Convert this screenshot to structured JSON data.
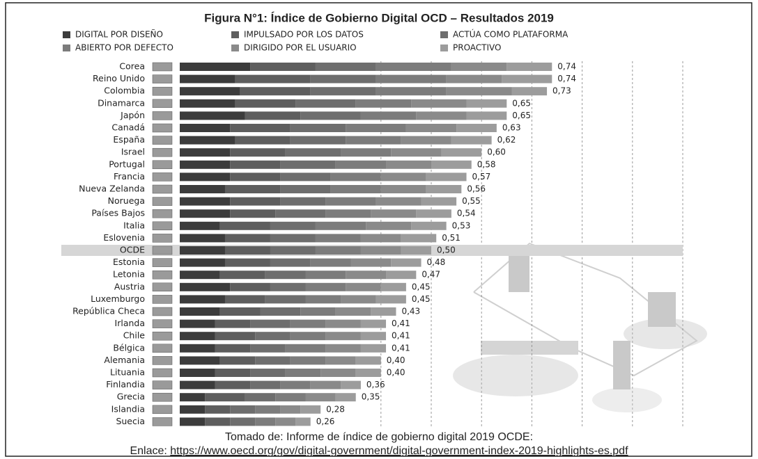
{
  "chart_data": {
    "type": "stacked-bar-horizontal",
    "title": "Figura N°1: Índice de Gobierno Digital OCD – Resultados 2019",
    "categories": [
      "Corea",
      "Reino Unido",
      "Colombia",
      "Dinamarca",
      "Japón",
      "Canadá",
      "España",
      "Israel",
      "Portugal",
      "Francia",
      "Nueva Zelanda",
      "Noruega",
      "Países Bajos",
      "Italia",
      "Eslovenia",
      "OCDE",
      "Estonia",
      "Letonia",
      "Austria",
      "Luxemburgo",
      "República Checa",
      "Irlanda",
      "Chile",
      "Bélgica",
      "Alemania",
      "Lituania",
      "Finlandia",
      "Grecia",
      "Islandia",
      "Suecia"
    ],
    "series": [
      {
        "name": "DIGITAL POR DISEÑO",
        "color": "#3c3c3c",
        "values": [
          0.14,
          0.11,
          0.12,
          0.11,
          0.13,
          0.1,
          0.11,
          0.1,
          0.1,
          0.1,
          0.09,
          0.1,
          0.1,
          0.08,
          0.09,
          0.09,
          0.09,
          0.08,
          0.1,
          0.09,
          0.08,
          0.07,
          0.07,
          0.07,
          0.08,
          0.07,
          0.07,
          0.05,
          0.05,
          0.05
        ]
      },
      {
        "name": "IMPULSADO POR LOS DATOS",
        "color": "#5e5e5e",
        "values": [
          0.13,
          0.15,
          0.14,
          0.12,
          0.11,
          0.12,
          0.11,
          0.11,
          0.1,
          0.1,
          0.11,
          0.1,
          0.09,
          0.1,
          0.09,
          0.09,
          0.09,
          0.09,
          0.08,
          0.08,
          0.08,
          0.07,
          0.08,
          0.07,
          0.07,
          0.07,
          0.07,
          0.08,
          0.05,
          0.05
        ]
      },
      {
        "name": "ACTÚA COMO PLATAFORMA",
        "color": "#6e6e6e",
        "values": [
          0.12,
          0.13,
          0.13,
          0.12,
          0.12,
          0.11,
          0.11,
          0.11,
          0.11,
          0.1,
          0.1,
          0.09,
          0.1,
          0.09,
          0.09,
          0.09,
          0.08,
          0.08,
          0.07,
          0.08,
          0.08,
          0.08,
          0.07,
          0.07,
          0.07,
          0.07,
          0.06,
          0.06,
          0.05,
          0.05
        ]
      },
      {
        "name": "ABIERTO POR DEFECTO",
        "color": "#7c7c7c",
        "values": [
          0.15,
          0.14,
          0.14,
          0.11,
          0.11,
          0.12,
          0.11,
          0.1,
          0.1,
          0.1,
          0.1,
          0.1,
          0.09,
          0.1,
          0.09,
          0.09,
          0.08,
          0.08,
          0.08,
          0.07,
          0.07,
          0.07,
          0.07,
          0.08,
          0.07,
          0.07,
          0.06,
          0.06,
          0.05,
          0.04
        ]
      },
      {
        "name": "DIRIGIDO POR EL USUARIO",
        "color": "#8a8a8a",
        "values": [
          0.11,
          0.11,
          0.13,
          0.11,
          0.1,
          0.1,
          0.1,
          0.1,
          0.09,
          0.09,
          0.09,
          0.09,
          0.09,
          0.09,
          0.08,
          0.08,
          0.08,
          0.08,
          0.07,
          0.07,
          0.07,
          0.07,
          0.07,
          0.07,
          0.06,
          0.07,
          0.06,
          0.06,
          0.04,
          0.04
        ]
      },
      {
        "name": "PROACTIVO",
        "color": "#9c9c9c",
        "values": [
          0.09,
          0.1,
          0.07,
          0.08,
          0.08,
          0.08,
          0.08,
          0.08,
          0.08,
          0.08,
          0.07,
          0.07,
          0.07,
          0.07,
          0.07,
          0.06,
          0.06,
          0.06,
          0.05,
          0.06,
          0.05,
          0.05,
          0.05,
          0.05,
          0.05,
          0.05,
          0.04,
          0.04,
          0.04,
          0.03
        ]
      }
    ],
    "totals": {
      "values": [
        0.74,
        0.74,
        0.73,
        0.65,
        0.65,
        0.63,
        0.62,
        0.6,
        0.58,
        0.57,
        0.56,
        0.55,
        0.54,
        0.53,
        0.51,
        0.5,
        0.48,
        0.47,
        0.45,
        0.45,
        0.43,
        0.41,
        0.41,
        0.41,
        0.4,
        0.4,
        0.36,
        0.35,
        0.28,
        0.26
      ],
      "value_labels": [
        "0,74",
        "0,74",
        "0,73",
        "0,65",
        "0,65",
        "0,63",
        "0,62",
        "0,60",
        "0,58",
        "0,57",
        "0,56",
        "0,55",
        "0,54",
        "0,53",
        "0,51",
        "0,50",
        "0,48",
        "0,47",
        "0,45",
        "0,45",
        "0,43",
        "0,41",
        "0,41",
        "0,41",
        "0,40",
        "0,40",
        "0,36",
        "0,35",
        "0,28",
        "0,26"
      ]
    },
    "highlight": "OCDE",
    "xlim": [
      0,
      1
    ],
    "gridlines": [
      0.4,
      0.5,
      0.6,
      0.7,
      0.8,
      0.9,
      1.0
    ],
    "source": {
      "text": "Tomado de: Informe de índice de gobierno digital 2019 OCDE:",
      "link_label": "Enlace:",
      "url": "https://www.oecd.org/gov/digital-government/digital-government-index-2019-highlights-es.pdf"
    }
  }
}
